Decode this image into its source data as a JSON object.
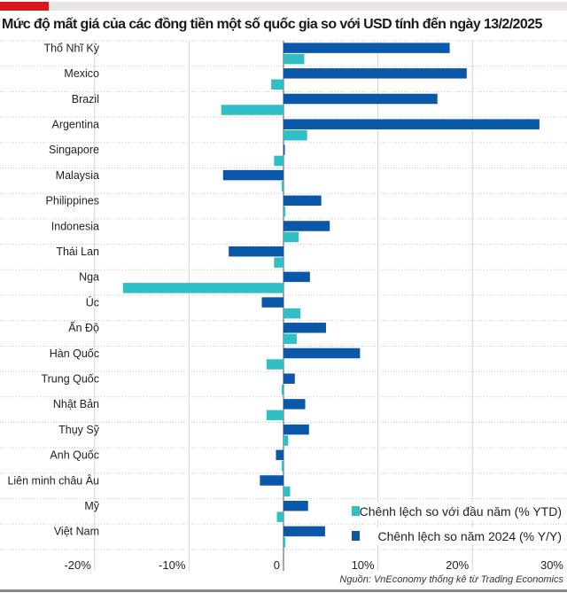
{
  "title": "Mức độ mất giá của các đồng tiền một số quốc gia so với USD tính đến ngày 13/2/2025",
  "source": "Nguồn: VnEconomy thống kê từ Trading Economics",
  "chart_data": {
    "type": "bar",
    "orientation": "horizontal",
    "title": "Mức độ mất giá của các đồng tiền một số quốc gia so với USD tính đến ngày 13/2/2025",
    "categories": [
      "Thổ Nhĩ Kỳ",
      "Mexico",
      "Brazil",
      "Argentina",
      "Singapore",
      "Malaysia",
      "Philippines",
      "Indonesia",
      "Thái Lan",
      "Nga",
      "Úc",
      "Ấn Độ",
      "Hàn Quốc",
      "Trung Quốc",
      "Nhật Bản",
      "Thụy Sỹ",
      "Anh Quốc",
      "Liên minh châu Âu",
      "Mỹ",
      "Việt Nam"
    ],
    "series": [
      {
        "name": "Chênh lệch so năm 2024 (% Y/Y)",
        "color": "#0b57a8",
        "values": [
          17.6,
          19.4,
          16.3,
          27.1,
          0.1,
          -6.4,
          4.0,
          4.9,
          -5.8,
          2.8,
          -2.3,
          4.5,
          8.1,
          1.2,
          2.3,
          2.7,
          -0.8,
          -2.5,
          2.6,
          4.4
        ]
      },
      {
        "name": "Chênh lệch so với đầu năm (% YTD)",
        "color": "#30bfc4",
        "values": [
          2.2,
          -1.3,
          -6.6,
          2.5,
          -1.0,
          -0.2,
          0.2,
          1.6,
          -1.0,
          -17.0,
          1.8,
          1.4,
          -1.8,
          -0.2,
          -1.8,
          0.5,
          -0.2,
          0.7,
          -0.7,
          0.2
        ]
      }
    ],
    "xticks": [
      "-20%",
      "-10%",
      "0",
      "10%",
      "20%",
      "30%"
    ],
    "xtick_values": [
      -20,
      -10,
      0,
      10,
      20,
      30
    ],
    "xlim": [
      -20,
      30
    ],
    "legend": [
      {
        "label": "Chênh lệch so với đầu năm (% YTD)",
        "color": "#30bfc4"
      },
      {
        "label": "Chênh lệch so năm 2024 (% Y/Y)",
        "color": "#0b57a8"
      }
    ],
    "legend_position": "bottom-right",
    "grid": true
  }
}
